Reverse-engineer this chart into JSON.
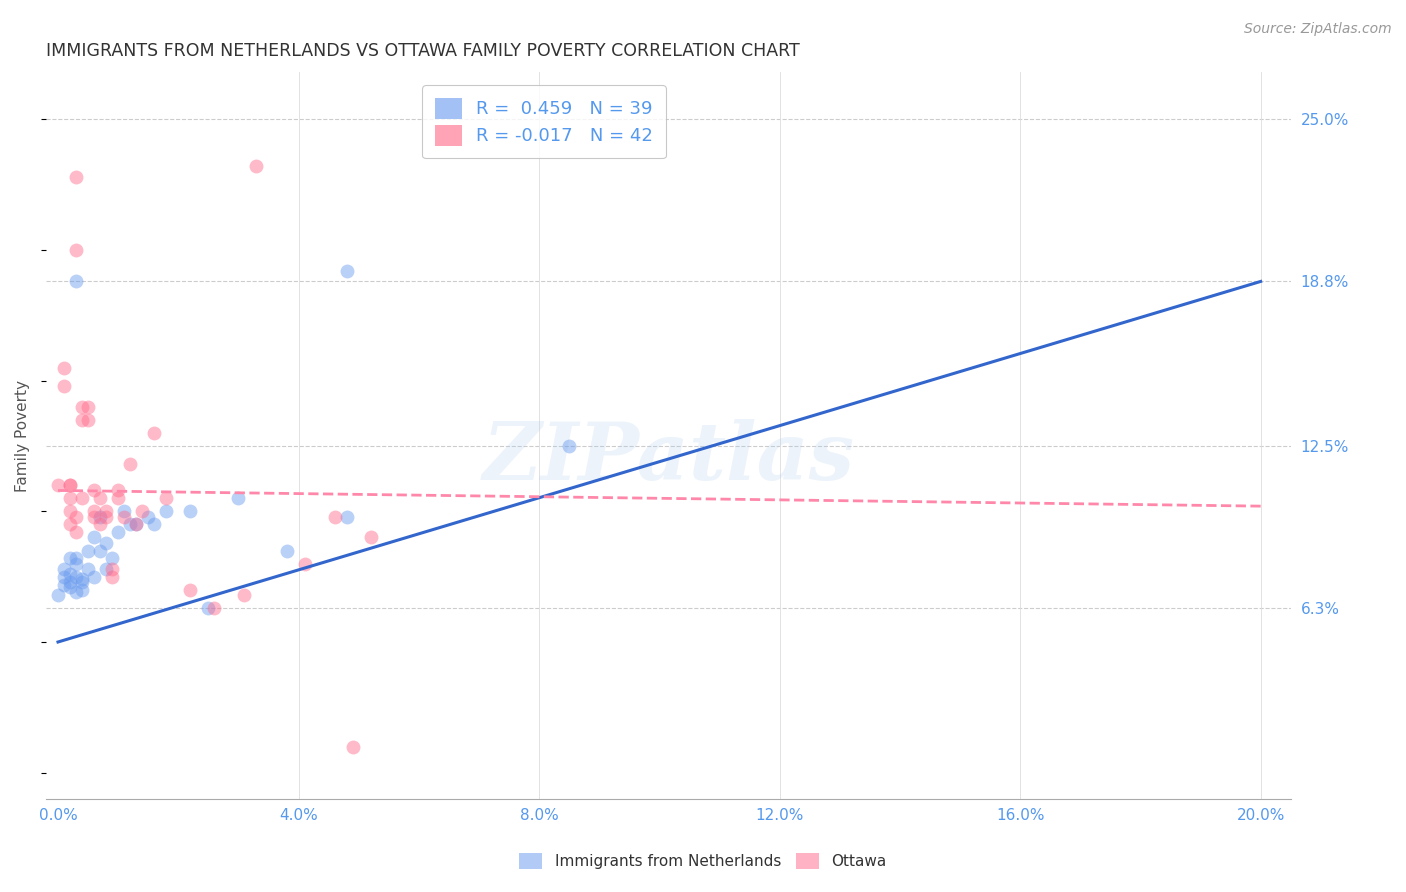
{
  "title": "IMMIGRANTS FROM NETHERLANDS VS OTTAWA FAMILY POVERTY CORRELATION CHART",
  "source": "Source: ZipAtlas.com",
  "ylabel": "Family Poverty",
  "ytick_labels": [
    "25.0%",
    "18.8%",
    "12.5%",
    "6.3%"
  ],
  "ytick_values": [
    0.25,
    0.188,
    0.125,
    0.063
  ],
  "xtick_values": [
    0.0,
    0.04,
    0.08,
    0.12,
    0.16,
    0.2
  ],
  "xtick_labels": [
    "0.0%",
    "4.0%",
    "8.0%",
    "12.0%",
    "16.0%",
    "20.0%"
  ],
  "xlim": [
    -0.002,
    0.205
  ],
  "ylim": [
    -0.01,
    0.268
  ],
  "legend_line1": "R =  0.459   N = 39",
  "legend_line2": "R = -0.017   N = 42",
  "blue_scatter": [
    [
      0.0,
      0.068
    ],
    [
      0.001,
      0.075
    ],
    [
      0.001,
      0.072
    ],
    [
      0.001,
      0.078
    ],
    [
      0.002,
      0.071
    ],
    [
      0.002,
      0.082
    ],
    [
      0.002,
      0.073
    ],
    [
      0.002,
      0.076
    ],
    [
      0.003,
      0.069
    ],
    [
      0.003,
      0.082
    ],
    [
      0.003,
      0.08
    ],
    [
      0.003,
      0.075
    ],
    [
      0.004,
      0.07
    ],
    [
      0.004,
      0.074
    ],
    [
      0.004,
      0.073
    ],
    [
      0.005,
      0.078
    ],
    [
      0.005,
      0.085
    ],
    [
      0.006,
      0.09
    ],
    [
      0.006,
      0.075
    ],
    [
      0.007,
      0.098
    ],
    [
      0.007,
      0.085
    ],
    [
      0.008,
      0.078
    ],
    [
      0.008,
      0.088
    ],
    [
      0.009,
      0.082
    ],
    [
      0.01,
      0.092
    ],
    [
      0.011,
      0.1
    ],
    [
      0.012,
      0.095
    ],
    [
      0.013,
      0.095
    ],
    [
      0.015,
      0.098
    ],
    [
      0.016,
      0.095
    ],
    [
      0.018,
      0.1
    ],
    [
      0.022,
      0.1
    ],
    [
      0.025,
      0.063
    ],
    [
      0.03,
      0.105
    ],
    [
      0.038,
      0.085
    ],
    [
      0.048,
      0.098
    ],
    [
      0.048,
      0.192
    ],
    [
      0.085,
      0.125
    ],
    [
      0.003,
      0.188
    ]
  ],
  "pink_scatter": [
    [
      0.0,
      0.11
    ],
    [
      0.001,
      0.155
    ],
    [
      0.001,
      0.148
    ],
    [
      0.002,
      0.095
    ],
    [
      0.002,
      0.1
    ],
    [
      0.002,
      0.105
    ],
    [
      0.002,
      0.11
    ],
    [
      0.003,
      0.092
    ],
    [
      0.003,
      0.098
    ],
    [
      0.003,
      0.228
    ],
    [
      0.003,
      0.2
    ],
    [
      0.004,
      0.105
    ],
    [
      0.004,
      0.14
    ],
    [
      0.004,
      0.135
    ],
    [
      0.005,
      0.14
    ],
    [
      0.005,
      0.135
    ],
    [
      0.006,
      0.098
    ],
    [
      0.006,
      0.108
    ],
    [
      0.006,
      0.1
    ],
    [
      0.007,
      0.095
    ],
    [
      0.007,
      0.105
    ],
    [
      0.008,
      0.098
    ],
    [
      0.008,
      0.1
    ],
    [
      0.009,
      0.078
    ],
    [
      0.009,
      0.075
    ],
    [
      0.01,
      0.105
    ],
    [
      0.01,
      0.108
    ],
    [
      0.011,
      0.098
    ],
    [
      0.012,
      0.118
    ],
    [
      0.013,
      0.095
    ],
    [
      0.014,
      0.1
    ],
    [
      0.016,
      0.13
    ],
    [
      0.018,
      0.105
    ],
    [
      0.022,
      0.07
    ],
    [
      0.026,
      0.063
    ],
    [
      0.031,
      0.068
    ],
    [
      0.033,
      0.232
    ],
    [
      0.041,
      0.08
    ],
    [
      0.046,
      0.098
    ],
    [
      0.052,
      0.09
    ],
    [
      0.049,
      0.01
    ],
    [
      0.002,
      0.11
    ]
  ],
  "blue_line_x": [
    0.0,
    0.2
  ],
  "blue_line_y": [
    0.05,
    0.188
  ],
  "pink_line_x": [
    0.0,
    0.2
  ],
  "pink_line_y": [
    0.108,
    0.102
  ],
  "watermark": "ZIPatlas",
  "background_color": "#ffffff",
  "scatter_alpha": 0.45,
  "scatter_size": 100,
  "blue_color": "#6699ee",
  "pink_color": "#ff6688",
  "blue_line_color": "#3366cc",
  "pink_line_color": "#ff88aa",
  "grid_color": "#cccccc",
  "title_color": "#333333",
  "tick_color": "#5599ee"
}
